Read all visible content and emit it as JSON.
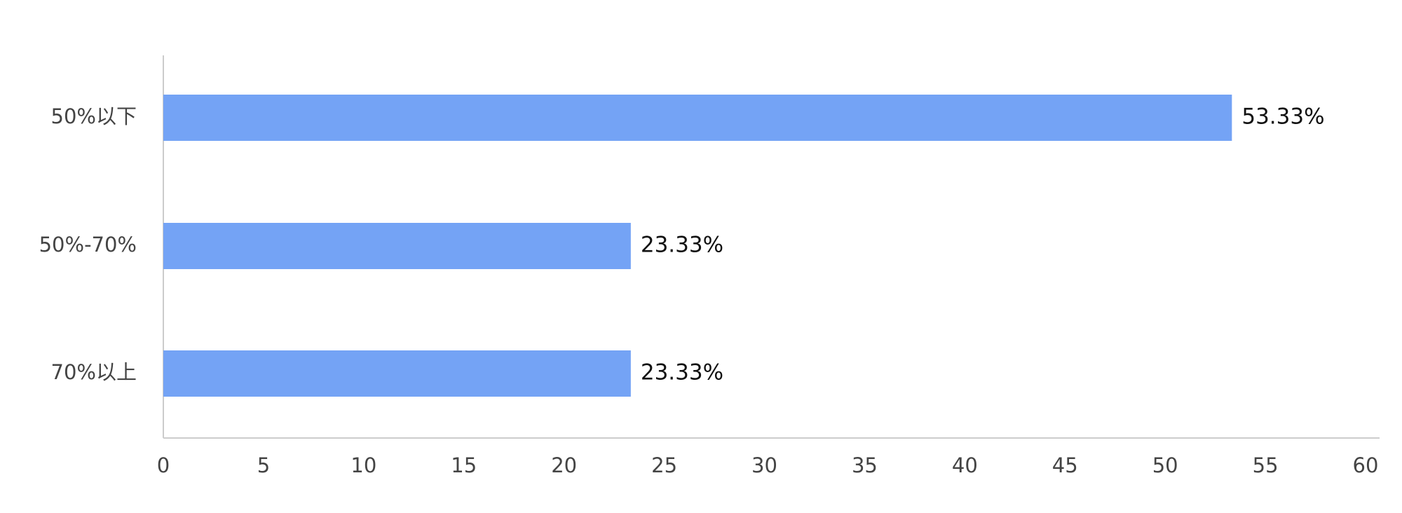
{
  "chart_data": {
    "type": "bar",
    "orientation": "horizontal",
    "categories": [
      "50%以下",
      "50%-70%",
      "70%以上"
    ],
    "values": [
      53.33,
      23.33,
      23.33
    ],
    "value_labels": [
      "53.33%",
      "23.33%",
      "23.33%"
    ],
    "color": "#74a3f5",
    "xlim": [
      0,
      60
    ],
    "xticks": [
      0,
      5,
      10,
      15,
      20,
      25,
      30,
      35,
      40,
      45,
      50,
      55,
      60
    ],
    "grid": false
  }
}
